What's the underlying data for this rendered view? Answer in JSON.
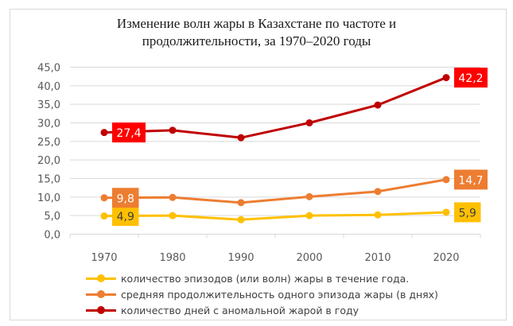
{
  "chart_data": {
    "type": "line",
    "title_lines": [
      "Изменение волн жары в Казахстане по частоте и",
      "продолжительности, за 1970–2020 годы"
    ],
    "xlabel": "",
    "ylabel": "",
    "categories": [
      "1970",
      "1980",
      "1990",
      "2000",
      "2010",
      "2020"
    ],
    "ylim": [
      0,
      45
    ],
    "yticks": [
      "0,0",
      "5,0",
      "10,0",
      "15,0",
      "20,0",
      "25,0",
      "30,0",
      "35,0",
      "40,0",
      "45,0"
    ],
    "ytick_values": [
      0,
      5,
      10,
      15,
      20,
      25,
      30,
      35,
      40,
      45
    ],
    "grid": true,
    "legend_position": "bottom",
    "series": [
      {
        "name": "количество эпизодов (или волн) жары в течение года.",
        "color": "#ffc000",
        "label_bg": "#ffc000",
        "label_color": "#404040",
        "values": [
          4.9,
          5.0,
          3.9,
          5.0,
          5.2,
          5.9
        ],
        "data_labels": {
          "0": "4,9",
          "5": "5,9"
        }
      },
      {
        "name": "средняя продолжительность одного эпизода жары (в днях)",
        "color": "#ed7d31",
        "label_bg": "#ed7d31",
        "label_color": "#ffffff",
        "values": [
          9.8,
          9.9,
          8.5,
          10.1,
          11.5,
          14.7
        ],
        "data_labels": {
          "0": "9,8",
          "5": "14,7"
        }
      },
      {
        "name": " количество дней с аномальной жарой в году",
        "color": "#c00000",
        "label_bg": "#ff0000",
        "label_color": "#ffffff",
        "values": [
          27.4,
          28.0,
          26.0,
          30.0,
          34.8,
          42.2
        ],
        "data_labels": {
          "0": "27,4",
          "5": "42,2"
        }
      }
    ]
  }
}
